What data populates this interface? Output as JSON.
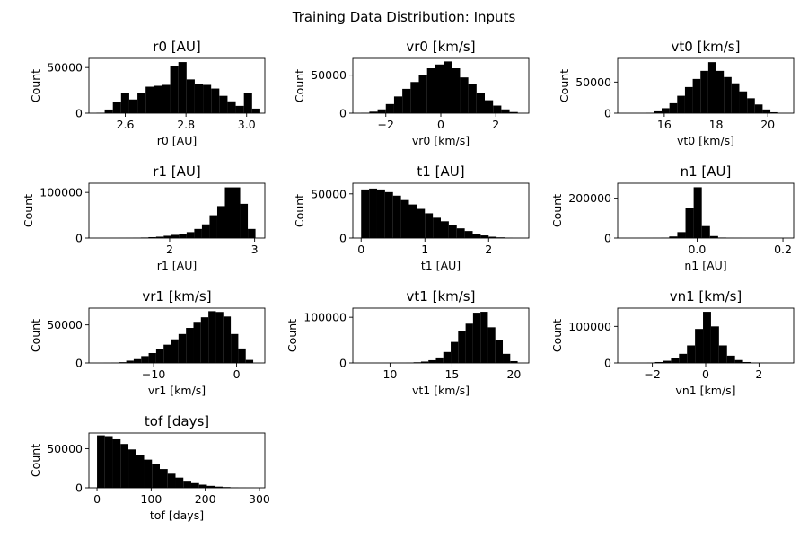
{
  "figure": {
    "title": "Training Data Distribution: Inputs",
    "bar_color": "#000000",
    "background": "#ffffff"
  },
  "chart_data": [
    {
      "type": "bar",
      "title": "r0 [AU]",
      "xlabel": "r0 [AU]",
      "ylabel": "Count",
      "xlim": [
        2.48,
        3.06
      ],
      "ylim": [
        0,
        60000
      ],
      "xticks": [
        2.6,
        2.8,
        3.0
      ],
      "xtick_labels": [
        "2.6",
        "2.8",
        "3.0"
      ],
      "yticks": [
        0,
        50000
      ],
      "ytick_labels": [
        "0",
        "50000"
      ],
      "bin_edges": [
        2.505,
        2.532,
        2.559,
        2.586,
        2.613,
        2.64,
        2.667,
        2.694,
        2.721,
        2.748,
        2.775,
        2.802,
        2.829,
        2.856,
        2.883,
        2.91,
        2.937,
        2.964,
        2.991,
        3.018,
        3.045
      ],
      "values": [
        500,
        4000,
        12000,
        22000,
        15000,
        22000,
        29000,
        30000,
        31000,
        52000,
        56000,
        37000,
        32000,
        31000,
        27000,
        19000,
        13000,
        8000,
        22000,
        5000
      ]
    },
    {
      "type": "bar",
      "title": "vr0 [km/s]",
      "xlabel": "vr0 [km/s]",
      "ylabel": "Count",
      "xlim": [
        -3.2,
        3.2
      ],
      "ylim": [
        0,
        72000
      ],
      "xticks": [
        -2,
        0,
        2
      ],
      "xtick_labels": [
        "−2",
        "0",
        "2"
      ],
      "yticks": [
        0,
        50000
      ],
      "yticks_labels_note": "",
      "ytick_labels": [
        "0",
        "50000"
      ],
      "bin_edges": [
        -2.9,
        -2.6,
        -2.3,
        -2.0,
        -1.7,
        -1.4,
        -1.1,
        -0.8,
        -0.5,
        -0.2,
        0.1,
        0.4,
        0.7,
        1.0,
        1.3,
        1.6,
        1.9,
        2.2,
        2.5,
        2.8
      ],
      "values": [
        500,
        2000,
        5000,
        12000,
        22000,
        32000,
        41000,
        50000,
        59000,
        64000,
        68000,
        59000,
        47000,
        38000,
        27000,
        17000,
        10000,
        5000,
        1500
      ]
    },
    {
      "type": "bar",
      "title": "vt0 [km/s]",
      "xlabel": "vt0 [km/s]",
      "ylabel": "Count",
      "xlim": [
        14.2,
        21.0
      ],
      "ylim": [
        0,
        88000
      ],
      "xticks": [
        16,
        18,
        20
      ],
      "xtick_labels": [
        "16",
        "18",
        "20"
      ],
      "yticks": [
        0,
        50000
      ],
      "ytick_labels": [
        "0",
        "50000"
      ],
      "bin_edges": [
        15.3,
        15.6,
        15.9,
        16.2,
        16.5,
        16.8,
        17.1,
        17.4,
        17.7,
        18.0,
        18.3,
        18.6,
        18.9,
        19.2,
        19.5,
        19.8,
        20.1,
        20.4
      ],
      "values": [
        500,
        3000,
        8000,
        16000,
        28000,
        42000,
        55000,
        68000,
        82000,
        68000,
        58000,
        48000,
        35000,
        24000,
        14000,
        6000,
        1500
      ]
    },
    {
      "type": "bar",
      "title": "r1 [AU]",
      "xlabel": "r1 [AU]",
      "ylabel": "Count",
      "xlim": [
        1.05,
        3.12
      ],
      "ylim": [
        0,
        120000
      ],
      "xticks": [
        2,
        3
      ],
      "xtick_labels": [
        "2",
        "3"
      ],
      "yticks": [
        0,
        100000
      ],
      "ytick_labels": [
        "0",
        "100000"
      ],
      "bin_edges": [
        1.3,
        1.39,
        1.48,
        1.57,
        1.66,
        1.75,
        1.84,
        1.93,
        2.02,
        2.11,
        2.2,
        2.29,
        2.38,
        2.47,
        2.56,
        2.65,
        2.74,
        2.83,
        2.92,
        3.01
      ],
      "values": [
        200,
        300,
        500,
        800,
        1200,
        2000,
        3000,
        5000,
        7000,
        9000,
        13000,
        20000,
        30000,
        50000,
        70000,
        111000,
        111000,
        75000,
        20000
      ]
    },
    {
      "type": "bar",
      "title": "t1 [AU]",
      "xlabel": "t1 [AU]",
      "ylabel": "Count",
      "xlim": [
        -0.13,
        2.63
      ],
      "ylim": [
        0,
        62000
      ],
      "xticks": [
        0,
        1,
        2
      ],
      "xtick_labels": [
        "0",
        "1",
        "2"
      ],
      "yticks": [
        0,
        50000
      ],
      "ytick_labels": [
        "0",
        "50000"
      ],
      "bin_edges": [
        0.0,
        0.125,
        0.25,
        0.375,
        0.5,
        0.625,
        0.75,
        0.875,
        1.0,
        1.125,
        1.25,
        1.375,
        1.5,
        1.625,
        1.75,
        1.875,
        2.0,
        2.125,
        2.25,
        2.375,
        2.5
      ],
      "values": [
        55000,
        56000,
        55000,
        52000,
        48000,
        43000,
        38000,
        33000,
        28000,
        23000,
        19000,
        15000,
        11000,
        8000,
        5000,
        3000,
        1500,
        800,
        300,
        100
      ]
    },
    {
      "type": "bar",
      "title": "n1 [AU]",
      "xlabel": "n1 [AU]",
      "ylabel": "Count",
      "xlim": [
        -0.185,
        0.225
      ],
      "ylim": [
        0,
        275000
      ],
      "xticks": [
        0.0,
        0.2
      ],
      "xtick_labels": [
        "0.0",
        "0.2"
      ],
      "yticks": [
        0,
        200000
      ],
      "ytick_labels": [
        "0",
        "200000"
      ],
      "bin_edges": [
        -0.16,
        -0.141,
        -0.122,
        -0.103,
        -0.084,
        -0.065,
        -0.046,
        -0.027,
        -0.008,
        0.011,
        0.03,
        0.049,
        0.068,
        0.087,
        0.106,
        0.125,
        0.144,
        0.163,
        0.182,
        0.201
      ],
      "values": [
        100,
        200,
        400,
        800,
        2000,
        8000,
        30000,
        150000,
        255000,
        60000,
        10000,
        2500,
        800,
        300,
        150,
        100,
        50,
        30,
        20
      ]
    },
    {
      "type": "bar",
      "title": "vr1 [km/s]",
      "xlabel": "vr1 [km/s]",
      "ylabel": "Count",
      "xlim": [
        -17.8,
        3.4
      ],
      "ylim": [
        0,
        72000
      ],
      "xticks": [
        -10,
        0
      ],
      "xtick_labels": [
        "−10",
        "0"
      ],
      "yticks": [
        0,
        50000
      ],
      "ytick_labels": [
        "0",
        "50000"
      ],
      "bin_edges": [
        -16.0,
        -15.1,
        -14.2,
        -13.3,
        -12.4,
        -11.5,
        -10.6,
        -9.7,
        -8.8,
        -7.9,
        -7.0,
        -6.1,
        -5.2,
        -4.3,
        -3.4,
        -2.5,
        -1.6,
        -0.7,
        0.2,
        1.1,
        2.0
      ],
      "values": [
        200,
        500,
        1000,
        3000,
        5000,
        9000,
        13000,
        18000,
        24000,
        31000,
        38000,
        46000,
        54000,
        60000,
        68000,
        67000,
        61000,
        38000,
        19000,
        4000
      ]
    },
    {
      "type": "bar",
      "title": "vt1 [km/s]",
      "xlabel": "vt1 [km/s]",
      "ylabel": "Count",
      "xlim": [
        7.0,
        21.2
      ],
      "ylim": [
        0,
        120000
      ],
      "xticks": [
        10,
        15,
        20
      ],
      "xtick_labels": [
        "10",
        "15",
        "20"
      ],
      "yticks": [
        0,
        100000
      ],
      "ytick_labels": [
        "0",
        "100000"
      ],
      "bin_edges": [
        8.3,
        8.9,
        9.5,
        10.1,
        10.7,
        11.3,
        11.9,
        12.5,
        13.1,
        13.7,
        14.3,
        14.9,
        15.5,
        16.1,
        16.7,
        17.3,
        17.9,
        18.5,
        19.1,
        19.7,
        20.3
      ],
      "values": [
        100,
        200,
        300,
        400,
        500,
        800,
        1500,
        3000,
        6000,
        12000,
        24000,
        46000,
        70000,
        86000,
        110000,
        112000,
        78000,
        50000,
        20000,
        4000
      ]
    },
    {
      "type": "bar",
      "title": "vn1 [km/s]",
      "xlabel": "vn1 [km/s]",
      "ylabel": "Count",
      "xlim": [
        -3.3,
        3.3
      ],
      "ylim": [
        0,
        150000
      ],
      "xticks": [
        -2,
        0,
        2
      ],
      "xtick_labels": [
        "−2",
        "0",
        "2"
      ],
      "yticks": [
        0,
        100000
      ],
      "ytick_labels": [
        "0",
        "100000"
      ],
      "bin_edges": [
        -2.8,
        -2.5,
        -2.2,
        -1.9,
        -1.6,
        -1.3,
        -1.0,
        -0.7,
        -0.4,
        -0.1,
        0.2,
        0.5,
        0.8,
        1.1,
        1.4,
        1.7,
        2.0,
        2.3,
        2.6
      ],
      "values": [
        100,
        300,
        800,
        2500,
        6000,
        13000,
        25000,
        48000,
        93000,
        140000,
        100000,
        48000,
        20000,
        8000,
        2500,
        800,
        300,
        100
      ]
    },
    {
      "type": "bar",
      "title": "tof [days]",
      "xlabel": "tof [days]",
      "ylabel": "Count",
      "xlim": [
        -15,
        310
      ],
      "ylim": [
        0,
        70000
      ],
      "xticks": [
        0,
        100,
        200,
        300
      ],
      "xtick_labels": [
        "0",
        "100",
        "200",
        "300"
      ],
      "yticks": [
        0,
        50000
      ],
      "ytick_labels": [
        "0",
        "50000"
      ],
      "bin_edges": [
        0,
        14.5,
        29,
        43.5,
        58,
        72.5,
        87,
        101.5,
        116,
        130.5,
        145,
        159.5,
        174,
        188.5,
        203,
        217.5,
        232,
        246.5,
        261,
        275.5,
        290
      ],
      "values": [
        67000,
        66000,
        62000,
        56000,
        49000,
        42000,
        36000,
        30000,
        24000,
        18000,
        13000,
        9000,
        6000,
        4000,
        2500,
        1500,
        900,
        500,
        200,
        100
      ]
    }
  ]
}
